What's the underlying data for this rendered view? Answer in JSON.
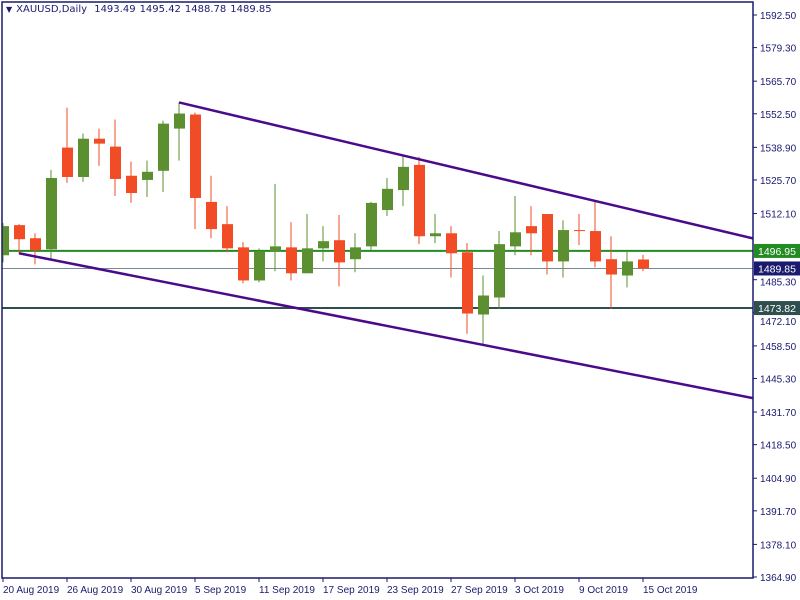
{
  "header": {
    "symbol_timeframe": "XAUUSD,Daily",
    "open": "1493.49",
    "high": "1495.42",
    "low": "1488.78",
    "close": "1489.85",
    "menu_icon": "triangle-down-icon"
  },
  "colors": {
    "bull": "#5b8f2f",
    "bear": "#f24c26",
    "axis": "#1a1a6e",
    "trendline": "#4b0a8a",
    "resistance": "#228b22",
    "bid": "#778899",
    "support": "#2f4f4f"
  },
  "chart_data": {
    "type": "candlestick",
    "symbol": "XAUUSD",
    "timeframe": "Daily",
    "ylim": [
      1364.9,
      1592.5
    ],
    "grid": false,
    "y_ticks": [
      "1592.50",
      "1579.30",
      "1565.70",
      "1552.50",
      "1538.90",
      "1525.70",
      "1512.10",
      "1485.30",
      "1472.10",
      "1458.50",
      "1445.30",
      "1431.70",
      "1418.50",
      "1404.90",
      "1391.70",
      "1378.10",
      "1364.90"
    ],
    "x_tick_labels": [
      "20 Aug 2019",
      "26 Aug 2019",
      "30 Aug 2019",
      "5 Sep 2019",
      "11 Sep 2019",
      "17 Sep 2019",
      "23 Sep 2019",
      "27 Sep 2019",
      "3 Oct 2019",
      "9 Oct 2019",
      "15 Oct 2019"
    ],
    "dates": [
      "2019-08-20",
      "2019-08-21",
      "2019-08-22",
      "2019-08-23",
      "2019-08-26",
      "2019-08-27",
      "2019-08-28",
      "2019-08-29",
      "2019-08-30",
      "2019-09-02",
      "2019-09-03",
      "2019-09-04",
      "2019-09-05",
      "2019-09-06",
      "2019-09-09",
      "2019-09-10",
      "2019-09-11",
      "2019-09-12",
      "2019-09-13",
      "2019-09-16",
      "2019-09-17",
      "2019-09-18",
      "2019-09-19",
      "2019-09-20",
      "2019-09-23",
      "2019-09-24",
      "2019-09-25",
      "2019-09-26",
      "2019-09-27",
      "2019-09-30",
      "2019-10-01",
      "2019-10-02",
      "2019-10-03",
      "2019-10-04",
      "2019-10-07",
      "2019-10-08",
      "2019-10-09",
      "2019-10-10",
      "2019-10-11",
      "2019-10-14",
      "2019-10-15"
    ],
    "ohlc": [
      [
        1495.2,
        1508.2,
        1492.3,
        1507.0
      ],
      [
        1507.4,
        1507.8,
        1496.0,
        1501.7
      ],
      [
        1502.1,
        1504.1,
        1491.5,
        1497.2
      ],
      [
        1497.6,
        1529.8,
        1493.1,
        1526.5
      ],
      [
        1538.8,
        1555.0,
        1524.5,
        1526.9
      ],
      [
        1526.9,
        1544.5,
        1524.9,
        1542.4
      ],
      [
        1542.4,
        1546.5,
        1531.4,
        1540.4
      ],
      [
        1539.2,
        1550.2,
        1519.2,
        1526.1
      ],
      [
        1527.4,
        1533.1,
        1516.4,
        1520.4
      ],
      [
        1525.7,
        1533.5,
        1518.8,
        1529.0
      ],
      [
        1529.4,
        1549.7,
        1520.8,
        1548.5
      ],
      [
        1546.5,
        1557.1,
        1533.5,
        1552.6
      ],
      [
        1552.2,
        1553.0,
        1505.8,
        1518.4
      ],
      [
        1516.8,
        1527.4,
        1502.1,
        1505.8
      ],
      [
        1507.8,
        1515.1,
        1496.4,
        1498.0
      ],
      [
        1498.4,
        1500.5,
        1483.8,
        1485.0
      ],
      [
        1485.0,
        1498.0,
        1484.2,
        1496.8
      ],
      [
        1496.8,
        1524.1,
        1488.7,
        1498.8
      ],
      [
        1498.4,
        1508.6,
        1485.0,
        1487.9
      ],
      [
        1487.9,
        1511.9,
        1487.9,
        1498.0
      ],
      [
        1498.0,
        1507.0,
        1492.7,
        1500.9
      ],
      [
        1501.3,
        1511.5,
        1482.6,
        1492.3
      ],
      [
        1493.6,
        1504.1,
        1488.3,
        1498.4
      ],
      [
        1498.8,
        1516.8,
        1497.2,
        1516.4
      ],
      [
        1513.5,
        1526.5,
        1511.1,
        1522.1
      ],
      [
        1521.6,
        1535.5,
        1515.1,
        1531.0
      ],
      [
        1531.8,
        1535.1,
        1499.7,
        1502.9
      ],
      [
        1502.9,
        1511.9,
        1500.1,
        1504.1
      ],
      [
        1504.1,
        1507.0,
        1486.2,
        1496.0
      ],
      [
        1496.4,
        1500.1,
        1463.4,
        1471.6
      ],
      [
        1471.2,
        1487.0,
        1458.5,
        1478.9
      ],
      [
        1478.1,
        1505.0,
        1473.6,
        1499.7
      ],
      [
        1498.8,
        1519.2,
        1495.2,
        1504.5
      ],
      [
        1507.0,
        1515.1,
        1495.2,
        1504.1
      ],
      [
        1511.9,
        1511.9,
        1487.4,
        1492.7
      ],
      [
        1492.7,
        1509.4,
        1486.2,
        1505.4
      ],
      [
        1505.4,
        1511.9,
        1499.3,
        1505.0
      ],
      [
        1505.0,
        1517.2,
        1490.3,
        1492.7
      ],
      [
        1493.6,
        1502.9,
        1473.6,
        1487.4
      ],
      [
        1487.0,
        1496.8,
        1482.2,
        1492.7
      ],
      [
        1493.49,
        1495.42,
        1488.78,
        1489.85
      ]
    ],
    "horizontal_lines": [
      {
        "price": 1496.95,
        "label": "1496.95",
        "color_key": "resistance"
      },
      {
        "price": 1489.85,
        "label": "1489.85",
        "color_key": "bid"
      },
      {
        "price": 1473.82,
        "label": "1473.82",
        "color_key": "support"
      }
    ],
    "trendlines": [
      {
        "from": {
          "date": "2019-09-04",
          "price": 1557.1
        },
        "to": {
          "date": "2019-10-10",
          "price": 1517.2
        },
        "extend_right": true
      },
      {
        "from": {
          "date": "2019-08-21",
          "price": 1496.0
        },
        "to": {
          "date": "2019-10-01",
          "price": 1458.9
        },
        "extend_right": true
      }
    ]
  }
}
